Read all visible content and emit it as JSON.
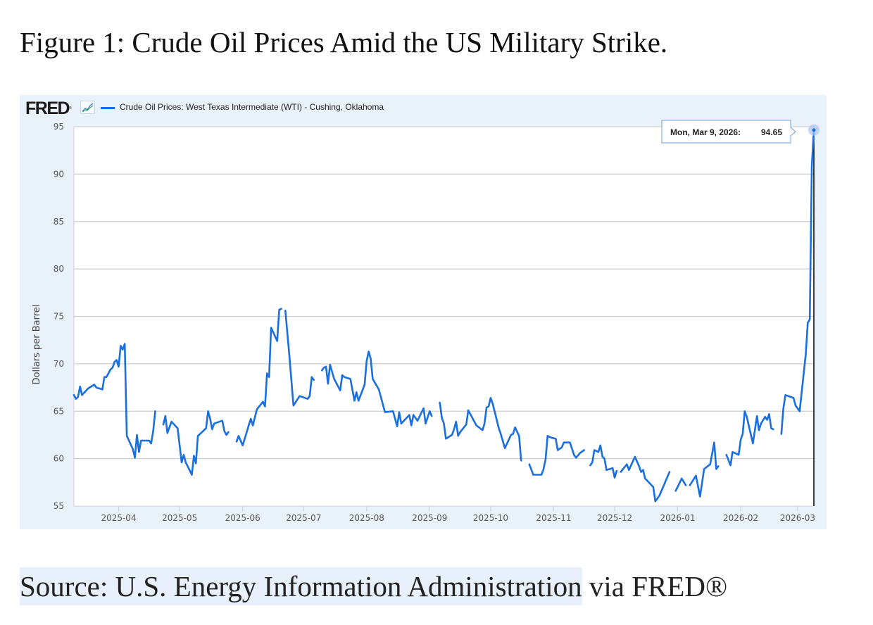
{
  "figure_title": "Figure 1: Crude Oil Prices Amid the US Military Strike.",
  "source": {
    "highlighted": "Source: U.S. Energy Information Administration",
    "rest": " via FRED®"
  },
  "logo_text": "FRED",
  "colors": {
    "line": "#1a6fe0",
    "panel": "#e9f1fb",
    "grid": "#cfcfcf"
  },
  "chart_data": {
    "type": "line",
    "title": "",
    "legend": [
      "Crude Oil Prices: West Texas Intermediate (WTI) - Cushing, Oklahoma"
    ],
    "legend_position": "top-left",
    "xlabel": "",
    "ylabel": "Dollars per Barrel",
    "xlim": [
      "2025-03-10",
      "2026-03-09"
    ],
    "ylim": [
      55,
      95
    ],
    "yticks": [
      55,
      60,
      65,
      70,
      75,
      80,
      85,
      90,
      95
    ],
    "xticks": [
      {
        "date": "2025-04-01",
        "label": "2025-04"
      },
      {
        "date": "2025-05-01",
        "label": "2025-05"
      },
      {
        "date": "2025-06-01",
        "label": "2025-06"
      },
      {
        "date": "2025-07-01",
        "label": "2025-07"
      },
      {
        "date": "2025-08-01",
        "label": "2025-08"
      },
      {
        "date": "2025-09-01",
        "label": "2025-09"
      },
      {
        "date": "2025-10-01",
        "label": "2025-10"
      },
      {
        "date": "2025-11-01",
        "label": "2025-11"
      },
      {
        "date": "2025-12-01",
        "label": "2025-12"
      },
      {
        "date": "2026-01-01",
        "label": "2026-01"
      },
      {
        "date": "2026-02-01",
        "label": "2026-02"
      },
      {
        "date": "2026-03-01",
        "label": "2026-03"
      }
    ],
    "grid": true,
    "tooltip": {
      "date": "2026-03-09",
      "label": "Mon, Mar 9, 2026:",
      "value": "94.65"
    },
    "series": [
      {
        "name": "Crude Oil Prices: West Texas Intermediate (WTI) - Cushing, Oklahoma",
        "segments": [
          [
            [
              "2025-03-10",
              66.7
            ],
            [
              "2025-03-11",
              66.3
            ],
            [
              "2025-03-12",
              66.5
            ],
            [
              "2025-03-13",
              67.6
            ],
            [
              "2025-03-14",
              66.7
            ],
            [
              "2025-03-17",
              67.4
            ],
            [
              "2025-03-20",
              67.8
            ],
            [
              "2025-03-21",
              67.5
            ],
            [
              "2025-03-24",
              67.3
            ],
            [
              "2025-03-25",
              68.6
            ],
            [
              "2025-03-26",
              68.6
            ],
            [
              "2025-03-28",
              69.4
            ],
            [
              "2025-03-29",
              69.6
            ],
            [
              "2025-03-30",
              70.2
            ],
            [
              "2025-03-31",
              70.4
            ],
            [
              "2025-04-01",
              69.7
            ],
            [
              "2025-04-02",
              71.9
            ],
            [
              "2025-04-03",
              71.5
            ],
            [
              "2025-04-04",
              72.1
            ],
            [
              "2025-04-05",
              62.4
            ],
            [
              "2025-04-08",
              61.0
            ],
            [
              "2025-04-09",
              60.1
            ],
            [
              "2025-04-10",
              62.5
            ],
            [
              "2025-04-11",
              60.7
            ],
            [
              "2025-04-12",
              61.9
            ],
            [
              "2025-04-16",
              61.9
            ],
            [
              "2025-04-17",
              61.6
            ],
            [
              "2025-04-18",
              62.9
            ],
            [
              "2025-04-19",
              65.0
            ]
          ],
          [
            [
              "2025-04-23",
              63.6
            ],
            [
              "2025-04-24",
              64.5
            ],
            [
              "2025-04-25",
              62.7
            ],
            [
              "2025-04-27",
              63.9
            ],
            [
              "2025-04-30",
              63.2
            ],
            [
              "2025-05-02",
              59.6
            ],
            [
              "2025-05-03",
              60.4
            ],
            [
              "2025-05-04",
              59.6
            ],
            [
              "2025-05-07",
              58.3
            ],
            [
              "2025-05-08",
              60.3
            ],
            [
              "2025-05-09",
              59.5
            ],
            [
              "2025-05-10",
              62.4
            ],
            [
              "2025-05-14",
              63.2
            ],
            [
              "2025-05-15",
              65.0
            ],
            [
              "2025-05-16",
              64.2
            ],
            [
              "2025-05-17",
              63.1
            ],
            [
              "2025-05-18",
              63.7
            ],
            [
              "2025-05-22",
              64.0
            ],
            [
              "2025-05-23",
              62.9
            ],
            [
              "2025-05-24",
              62.5
            ],
            [
              "2025-05-25",
              62.8
            ]
          ],
          [
            [
              "2025-05-29",
              61.8
            ],
            [
              "2025-05-30",
              62.4
            ],
            [
              "2025-06-01",
              61.4
            ],
            [
              "2025-06-04",
              63.5
            ],
            [
              "2025-06-05",
              64.2
            ],
            [
              "2025-06-06",
              63.5
            ],
            [
              "2025-06-08",
              65.2
            ],
            [
              "2025-06-11",
              66.0
            ],
            [
              "2025-06-12",
              65.5
            ],
            [
              "2025-06-13",
              69.0
            ],
            [
              "2025-06-14",
              68.6
            ],
            [
              "2025-06-15",
              73.8
            ],
            [
              "2025-06-18",
              72.4
            ],
            [
              "2025-06-19",
              75.7
            ],
            [
              "2025-06-20",
              75.8
            ]
          ],
          [
            [
              "2025-06-22",
              75.6
            ],
            [
              "2025-06-24",
              70.8
            ],
            [
              "2025-06-26",
              65.6
            ],
            [
              "2025-06-29",
              66.6
            ],
            [
              "2025-07-03",
              66.3
            ],
            [
              "2025-07-04",
              66.6
            ],
            [
              "2025-07-05",
              68.6
            ],
            [
              "2025-07-06",
              68.3
            ]
          ],
          [
            [
              "2025-07-10",
              69.3
            ],
            [
              "2025-07-11",
              69.6
            ],
            [
              "2025-07-12",
              69.7
            ],
            [
              "2025-07-13",
              67.9
            ],
            [
              "2025-07-14",
              69.9
            ],
            [
              "2025-07-16",
              68.4
            ],
            [
              "2025-07-19",
              67.2
            ],
            [
              "2025-07-20",
              68.8
            ],
            [
              "2025-07-21",
              68.6
            ],
            [
              "2025-07-24",
              68.4
            ],
            [
              "2025-07-26",
              66.1
            ],
            [
              "2025-07-27",
              67.0
            ],
            [
              "2025-07-28",
              66.1
            ],
            [
              "2025-07-31",
              67.8
            ],
            [
              "2025-08-01",
              70.3
            ],
            [
              "2025-08-02",
              71.3
            ],
            [
              "2025-08-03",
              70.5
            ],
            [
              "2025-08-04",
              68.4
            ],
            [
              "2025-08-07",
              67.3
            ],
            [
              "2025-08-10",
              64.9
            ],
            [
              "2025-08-14",
              65.0
            ],
            [
              "2025-08-16",
              63.4
            ],
            [
              "2025-08-17",
              64.9
            ],
            [
              "2025-08-18",
              63.7
            ],
            [
              "2025-08-22",
              64.6
            ],
            [
              "2025-08-23",
              63.5
            ],
            [
              "2025-08-24",
              64.6
            ],
            [
              "2025-08-26",
              64.0
            ],
            [
              "2025-08-29",
              65.3
            ],
            [
              "2025-08-30",
              63.7
            ],
            [
              "2025-09-01",
              65.0
            ],
            [
              "2025-09-02",
              64.5
            ]
          ],
          [
            [
              "2025-09-06",
              65.9
            ],
            [
              "2025-09-07",
              64.3
            ],
            [
              "2025-09-08",
              63.7
            ],
            [
              "2025-09-09",
              62.1
            ],
            [
              "2025-09-12",
              62.5
            ],
            [
              "2025-09-13",
              63.1
            ],
            [
              "2025-09-14",
              63.9
            ],
            [
              "2025-09-15",
              62.4
            ],
            [
              "2025-09-16",
              62.8
            ],
            [
              "2025-09-19",
              63.6
            ],
            [
              "2025-09-20",
              65.1
            ],
            [
              "2025-09-24",
              63.5
            ],
            [
              "2025-09-27",
              63.0
            ],
            [
              "2025-09-28",
              63.7
            ],
            [
              "2025-09-29",
              65.4
            ],
            [
              "2025-09-30",
              65.5
            ],
            [
              "2025-10-01",
              66.4
            ],
            [
              "2025-10-02",
              65.8
            ],
            [
              "2025-10-05",
              63.2
            ],
            [
              "2025-10-06",
              62.6
            ],
            [
              "2025-10-08",
              61.1
            ],
            [
              "2025-10-11",
              62.5
            ],
            [
              "2025-10-12",
              62.6
            ],
            [
              "2025-10-13",
              63.3
            ],
            [
              "2025-10-15",
              62.4
            ],
            [
              "2025-10-16",
              59.8
            ]
          ],
          [
            [
              "2025-10-20",
              59.4
            ],
            [
              "2025-10-22",
              58.3
            ],
            [
              "2025-10-26",
              58.3
            ],
            [
              "2025-10-27",
              58.9
            ],
            [
              "2025-10-28",
              59.9
            ],
            [
              "2025-10-29",
              62.4
            ],
            [
              "2025-10-31",
              62.2
            ],
            [
              "2025-11-02",
              62.1
            ],
            [
              "2025-11-03",
              60.9
            ],
            [
              "2025-11-05",
              61.2
            ],
            [
              "2025-11-06",
              61.7
            ],
            [
              "2025-11-09",
              61.7
            ],
            [
              "2025-11-11",
              60.4
            ],
            [
              "2025-11-12",
              60.1
            ],
            [
              "2025-11-14",
              60.6
            ],
            [
              "2025-11-16",
              60.9
            ]
          ],
          [
            [
              "2025-11-19",
              59.3
            ],
            [
              "2025-11-20",
              59.6
            ],
            [
              "2025-11-21",
              60.9
            ],
            [
              "2025-11-23",
              60.7
            ],
            [
              "2025-11-24",
              61.4
            ],
            [
              "2025-11-25",
              60.2
            ],
            [
              "2025-11-26",
              60.0
            ],
            [
              "2025-11-27",
              58.8
            ],
            [
              "2025-11-30",
              59.0
            ],
            [
              "2025-12-01",
              58.0
            ],
            [
              "2025-12-02",
              58.7
            ]
          ],
          [
            [
              "2025-12-04",
              58.6
            ],
            [
              "2025-12-07",
              59.4
            ],
            [
              "2025-12-08",
              58.8
            ],
            [
              "2025-12-11",
              60.2
            ],
            [
              "2025-12-13",
              59.2
            ],
            [
              "2025-12-14",
              58.6
            ],
            [
              "2025-12-15",
              58.8
            ],
            [
              "2025-12-16",
              57.9
            ],
            [
              "2025-12-20",
              57.0
            ],
            [
              "2025-12-21",
              55.5
            ],
            [
              "2025-12-23",
              56.1
            ],
            [
              "2025-12-28",
              58.6
            ]
          ],
          [
            [
              "2025-12-31",
              56.6
            ],
            [
              "2026-01-03",
              57.9
            ],
            [
              "2026-01-05",
              57.2
            ]
          ],
          [
            [
              "2026-01-07",
              57.2
            ],
            [
              "2026-01-10",
              58.2
            ],
            [
              "2026-01-12",
              56.0
            ],
            [
              "2026-01-14",
              58.9
            ],
            [
              "2026-01-17",
              59.4
            ],
            [
              "2026-01-19",
              61.7
            ],
            [
              "2026-01-20",
              58.9
            ],
            [
              "2026-01-21",
              59.2
            ]
          ],
          [
            [
              "2026-01-25",
              60.4
            ],
            [
              "2026-01-27",
              59.3
            ],
            [
              "2026-01-28",
              60.7
            ],
            [
              "2026-01-31",
              60.4
            ],
            [
              "2026-02-01",
              62.0
            ],
            [
              "2026-02-02",
              62.6
            ],
            [
              "2026-02-03",
              65.0
            ],
            [
              "2026-02-04",
              64.4
            ],
            [
              "2026-02-07",
              61.6
            ],
            [
              "2026-02-09",
              64.5
            ],
            [
              "2026-02-10",
              63.0
            ],
            [
              "2026-02-11",
              63.7
            ],
            [
              "2026-02-13",
              64.4
            ],
            [
              "2026-02-14",
              64.1
            ],
            [
              "2026-02-15",
              64.7
            ],
            [
              "2026-02-16",
              63.2
            ],
            [
              "2026-02-17",
              63.1
            ]
          ],
          [
            [
              "2026-02-21",
              62.6
            ],
            [
              "2026-02-22",
              65.3
            ],
            [
              "2026-02-23",
              66.7
            ],
            [
              "2026-02-27",
              66.4
            ],
            [
              "2026-02-28",
              65.6
            ],
            [
              "2026-03-02",
              65.0
            ],
            [
              "2026-03-05",
              71.0
            ],
            [
              "2026-03-06",
              74.3
            ],
            [
              "2026-03-07",
              74.7
            ],
            [
              "2026-03-08",
              90.9
            ],
            [
              "2026-03-09",
              94.65
            ]
          ]
        ]
      }
    ]
  }
}
